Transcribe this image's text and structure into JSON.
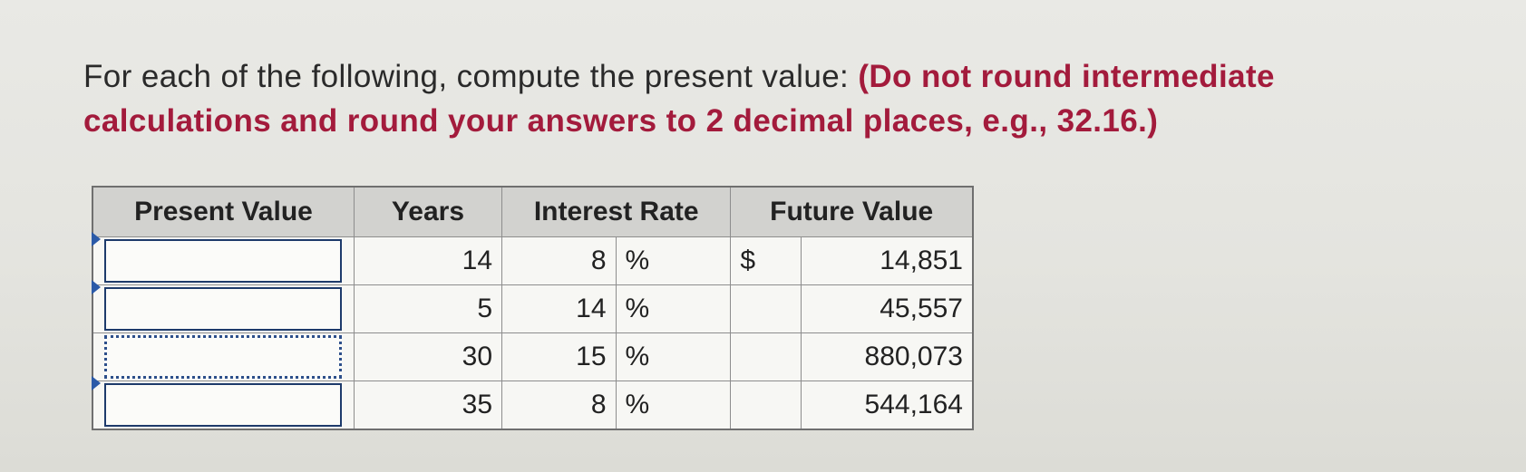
{
  "instructions": {
    "lead": "For each of the following, compute the present value: ",
    "emphasis": "(Do not round intermediate calculations and round your answers to 2 decimal places, e.g., 32.16.)"
  },
  "table": {
    "headers": {
      "present_value": "Present Value",
      "years": "Years",
      "interest_rate": "Interest Rate",
      "future_value": "Future Value"
    },
    "currency_symbol": "$",
    "percent_symbol": "%",
    "rows": [
      {
        "present_value": "",
        "years": "14",
        "rate": "8",
        "future_value": "14,851"
      },
      {
        "present_value": "",
        "years": "5",
        "rate": "14",
        "future_value": "45,557"
      },
      {
        "present_value": "",
        "years": "30",
        "rate": "15",
        "future_value": "880,073"
      },
      {
        "present_value": "",
        "years": "35",
        "rate": "8",
        "future_value": "544,164"
      }
    ]
  }
}
